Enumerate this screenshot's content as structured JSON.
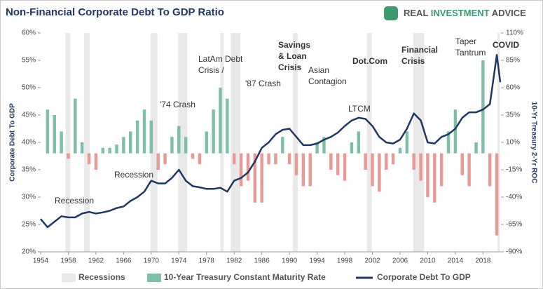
{
  "brand": [
    "REAL",
    "INVESTMENT",
    "ADVICE"
  ],
  "chart_data": {
    "type": "combo",
    "title": "Non-Financial Corporate Debt To GDP Ratio",
    "ylabel": "Corporate Debt To GDP",
    "y2label": "10-Yr Treasury 2-Yr ROC",
    "xlim": [
      1954,
      2020.6
    ],
    "xticks": [
      1954,
      1958,
      1962,
      1966,
      1970,
      1974,
      1978,
      1982,
      1986,
      1990,
      1994,
      1998,
      2002,
      2006,
      2010,
      2014,
      2018
    ],
    "ylim": [
      20,
      60
    ],
    "yticks": [
      {
        "value": 20,
        "label": "20%"
      },
      {
        "value": 25,
        "label": "25%"
      },
      {
        "value": 30,
        "label": "30%"
      },
      {
        "value": 35,
        "label": "35%"
      },
      {
        "value": 40,
        "label": "40%"
      },
      {
        "value": 45,
        "label": "45%"
      },
      {
        "value": 50,
        "label": "50%"
      },
      {
        "value": 55,
        "label": "55%"
      },
      {
        "value": 60,
        "label": "60%"
      }
    ],
    "y2lim": [
      -90,
      110
    ],
    "y2ticks": [
      {
        "value": -90,
        "label": "-90%"
      },
      {
        "value": -65,
        "label": "-65%"
      },
      {
        "value": -40,
        "label": "-40%"
      },
      {
        "value": -15,
        "label": "-15%"
      },
      {
        "value": 10,
        "label": "10%"
      },
      {
        "value": 35,
        "label": "35%"
      },
      {
        "value": 60,
        "label": "60%"
      },
      {
        "value": 85,
        "label": "85%"
      },
      {
        "value": 110,
        "label": "110%"
      }
    ],
    "recessions": {
      "name": "Recessions",
      "color": "#e9e9e9",
      "spans": [
        [
          1957.6,
          1958.3
        ],
        [
          1960.3,
          1961.1
        ],
        [
          1969.9,
          1970.9
        ],
        [
          1973.9,
          1975.2
        ],
        [
          1980.0,
          1980.5
        ],
        [
          1981.5,
          1982.9
        ],
        [
          1990.5,
          1991.2
        ],
        [
          2001.2,
          2001.9
        ],
        [
          2007.9,
          2009.5
        ],
        [
          2020.1,
          2020.4
        ]
      ]
    },
    "series": [
      {
        "name": "10-Year Treasury Constant Maturity Rate",
        "type": "bar",
        "axis": "y2",
        "color": "#7fbfa8",
        "negative_color": "#e89a94",
        "x": [
          1955,
          1956,
          1957,
          1958,
          1959,
          1960,
          1961,
          1962,
          1963,
          1964,
          1965,
          1966,
          1967,
          1968,
          1969,
          1970,
          1971,
          1972,
          1973,
          1974,
          1975,
          1976,
          1977,
          1978,
          1979,
          1980,
          1981,
          1982,
          1983,
          1984,
          1985,
          1986,
          1987,
          1988,
          1989,
          1990,
          1991,
          1992,
          1993,
          1994,
          1995,
          1996,
          1997,
          1998,
          1999,
          2000,
          2001,
          2002,
          2003,
          2004,
          2005,
          2006,
          2007,
          2008,
          2009,
          2010,
          2011,
          2012,
          2013,
          2014,
          2015,
          2016,
          2017,
          2018,
          2019,
          2020
        ],
        "values": [
          40,
          35,
          20,
          -5,
          50,
          10,
          -10,
          -15,
          5,
          5,
          8,
          15,
          20,
          30,
          40,
          30,
          -15,
          -10,
          15,
          25,
          15,
          -5,
          -10,
          20,
          40,
          60,
          50,
          -10,
          -30,
          -25,
          -45,
          -45,
          -10,
          -10,
          15,
          -10,
          -20,
          -30,
          -30,
          10,
          15,
          -15,
          -20,
          -25,
          10,
          20,
          -15,
          -30,
          -35,
          -15,
          -10,
          5,
          20,
          -15,
          -25,
          -40,
          -45,
          -30,
          20,
          40,
          -20,
          -30,
          10,
          85,
          -30,
          -75
        ]
      },
      {
        "name": "Corporate Debt To GDP",
        "type": "line",
        "color": "#1f3864",
        "x": [
          1954,
          1955,
          1956,
          1957,
          1958,
          1959,
          1960,
          1961,
          1962,
          1963,
          1964,
          1965,
          1966,
          1967,
          1968,
          1969,
          1970,
          1971,
          1972,
          1973,
          1974,
          1975,
          1976,
          1977,
          1978,
          1979,
          1980,
          1981,
          1982,
          1983,
          1984,
          1985,
          1986,
          1987,
          1988,
          1989,
          1990,
          1991,
          1992,
          1993,
          1994,
          1995,
          1996,
          1997,
          1998,
          1999,
          2000,
          2001,
          2002,
          2003,
          2004,
          2005,
          2006,
          2007,
          2008,
          2009,
          2010,
          2011,
          2012,
          2013,
          2014,
          2015,
          2016,
          2017,
          2018,
          2019,
          2020,
          2020.5
        ],
        "values": [
          26,
          24.5,
          25.5,
          26.5,
          26.3,
          26.3,
          27,
          27.3,
          27,
          27.2,
          27.5,
          28,
          28.3,
          29.3,
          30,
          31,
          33,
          32.5,
          32.5,
          33.5,
          35,
          33,
          32,
          31.8,
          31.5,
          31.5,
          31.7,
          31,
          33,
          33.5,
          34.5,
          36.5,
          39,
          40,
          41.5,
          42.3,
          42.5,
          41,
          39.5,
          39.5,
          39.8,
          40.5,
          41,
          41.8,
          43,
          44,
          44.5,
          44.3,
          43,
          41,
          40,
          39.8,
          40.5,
          42.5,
          45.3,
          44,
          40,
          39.8,
          41,
          41.5,
          42.5,
          44.5,
          45.5,
          45.5,
          46,
          47,
          56,
          51
        ]
      }
    ],
    "annotations": [
      {
        "lines": [
          "Recession"
        ],
        "color": "#333333"
      },
      {
        "lines": [
          "Recession"
        ],
        "color": "#333333"
      },
      {
        "lines": [
          "'74 Crash"
        ],
        "color": "#333333"
      },
      {
        "lines": [
          "LatAm Debt",
          "Crisis /"
        ],
        "color": "#333333"
      },
      {
        "lines": [
          "'87 Crash"
        ],
        "color": "#333333"
      },
      {
        "lines": [
          "Savings",
          "& Loan",
          "Crisis"
        ],
        "color": "#e02020"
      },
      {
        "lines": [
          "Asian",
          "Contagion"
        ],
        "color": "#333333"
      },
      {
        "lines": [
          "Dot.Com"
        ],
        "color": "#e02020"
      },
      {
        "lines": [
          "LTCM"
        ],
        "color": "#333333"
      },
      {
        "lines": [
          "Financial",
          "Crisis"
        ],
        "color": "#e02020"
      },
      {
        "lines": [
          "Taper",
          "Tantrum"
        ],
        "color": "#333333"
      },
      {
        "lines": [
          "COVID"
        ],
        "color": "#e02020"
      }
    ]
  }
}
